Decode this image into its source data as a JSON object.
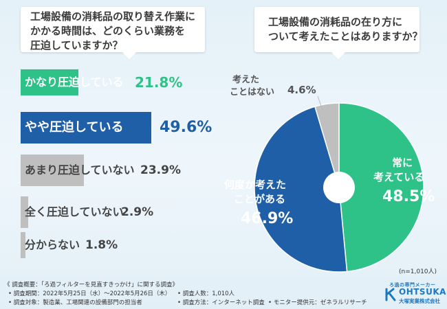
{
  "chart_data": [
    {
      "type": "bar",
      "title": "工場設備の消耗品の取り替え作業にかかる時間は、どのくらい業務を圧迫していますか？",
      "title_lines": [
        "工場設備の消耗品の取り替え作業に",
        "かかる時間は、どのくらい業務を",
        "圧迫していますか？"
      ],
      "categories": [
        "かなり圧迫している",
        "やや圧迫している",
        "あまり圧迫していない",
        "全く圧迫していない",
        "分からない"
      ],
      "values": [
        21.8,
        49.6,
        23.9,
        2.9,
        1.8
      ],
      "value_labels": [
        "21.8%",
        "49.6%",
        "23.9%",
        "2.9%",
        "1.8%"
      ],
      "colors": [
        "#2ec289",
        "#1f5fa8",
        "#bfbfbf",
        "#bfbfbf",
        "#bfbfbf"
      ]
    },
    {
      "type": "pie",
      "title": "工場設備の消耗品の在り方について考えたことはありますか？",
      "title_lines": [
        "工場設備の消耗品の在り方に",
        "ついて考えたことはありますか？"
      ],
      "categories": [
        "常に考えている",
        "何度か考えたことがある",
        "考えたことはない"
      ],
      "values": [
        48.5,
        46.9,
        4.6
      ],
      "value_labels": [
        "48.5%",
        "46.9%",
        "4.6%"
      ],
      "label_lines": [
        [
          "常に",
          "考えている"
        ],
        [
          "何度か考えた",
          "ことがある"
        ],
        [
          "考えた",
          "ことはない"
        ]
      ],
      "colors": [
        "#2ec289",
        "#1f5fa8",
        "#bfbfbf"
      ],
      "sample_note": "(n=1,010人)"
    }
  ],
  "footer": {
    "overview": "《 調査概要：「ろ過フィルターを見直すきっかけ」に関する調査》",
    "period": "• 調査期間：2022年5月25日（水）～2022年5月26日（木）",
    "people": "• 調査人数：1,010人",
    "target": "• 調査対象：製造業、工場関連の設備部門の担当者",
    "method": "• 調査方法：インターネット調査",
    "provider": "• モニター提供元：ゼネラルリサーチ"
  },
  "logo": {
    "tagline": "ろ過の専門メーカー",
    "brand": "OHTSUKA",
    "company": "大塚実業株式会社",
    "color": "#1e78c0"
  }
}
